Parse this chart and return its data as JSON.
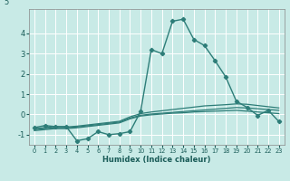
{
  "title": "",
  "xlabel": "Humidex (Indice chaleur)",
  "bg_color": "#c8eae6",
  "grid_color": "#ffffff",
  "line_color": "#2d7d78",
  "x_values": [
    0,
    1,
    2,
    3,
    4,
    5,
    6,
    7,
    8,
    9,
    10,
    11,
    12,
    13,
    14,
    15,
    16,
    17,
    18,
    19,
    20,
    21,
    22,
    23
  ],
  "line1_y": [
    -0.65,
    -0.55,
    -0.6,
    -0.6,
    -1.3,
    -1.2,
    -0.85,
    -1.0,
    -0.95,
    -0.85,
    0.15,
    3.2,
    3.0,
    4.6,
    4.7,
    3.7,
    3.4,
    2.65,
    1.85,
    0.65,
    0.35,
    -0.05,
    0.2,
    -0.35
  ],
  "line2_y": [
    -0.7,
    -0.65,
    -0.6,
    -0.62,
    -0.58,
    -0.52,
    -0.46,
    -0.4,
    -0.34,
    -0.12,
    0.04,
    0.12,
    0.18,
    0.24,
    0.3,
    0.36,
    0.42,
    0.45,
    0.48,
    0.52,
    0.5,
    0.44,
    0.38,
    0.32
  ],
  "line3_y": [
    -0.75,
    -0.7,
    -0.66,
    -0.66,
    -0.62,
    -0.56,
    -0.5,
    -0.44,
    -0.38,
    -0.18,
    -0.04,
    0.02,
    0.06,
    0.1,
    0.14,
    0.18,
    0.22,
    0.26,
    0.3,
    0.34,
    0.32,
    0.28,
    0.24,
    0.2
  ],
  "line4_y": [
    -0.8,
    -0.75,
    -0.7,
    -0.7,
    -0.66,
    -0.6,
    -0.54,
    -0.48,
    -0.42,
    -0.22,
    -0.08,
    -0.02,
    0.02,
    0.06,
    0.08,
    0.12,
    0.14,
    0.16,
    0.18,
    0.2,
    0.16,
    0.12,
    0.08,
    0.04
  ],
  "ylim": [
    -1.5,
    5.2
  ],
  "xlim": [
    -0.5,
    23.5
  ],
  "yticks": [
    -1,
    0,
    1,
    2,
    3,
    4
  ],
  "xticks": [
    0,
    1,
    2,
    3,
    4,
    5,
    6,
    7,
    8,
    9,
    10,
    11,
    12,
    13,
    14,
    15,
    16,
    17,
    18,
    19,
    20,
    21,
    22,
    23
  ]
}
